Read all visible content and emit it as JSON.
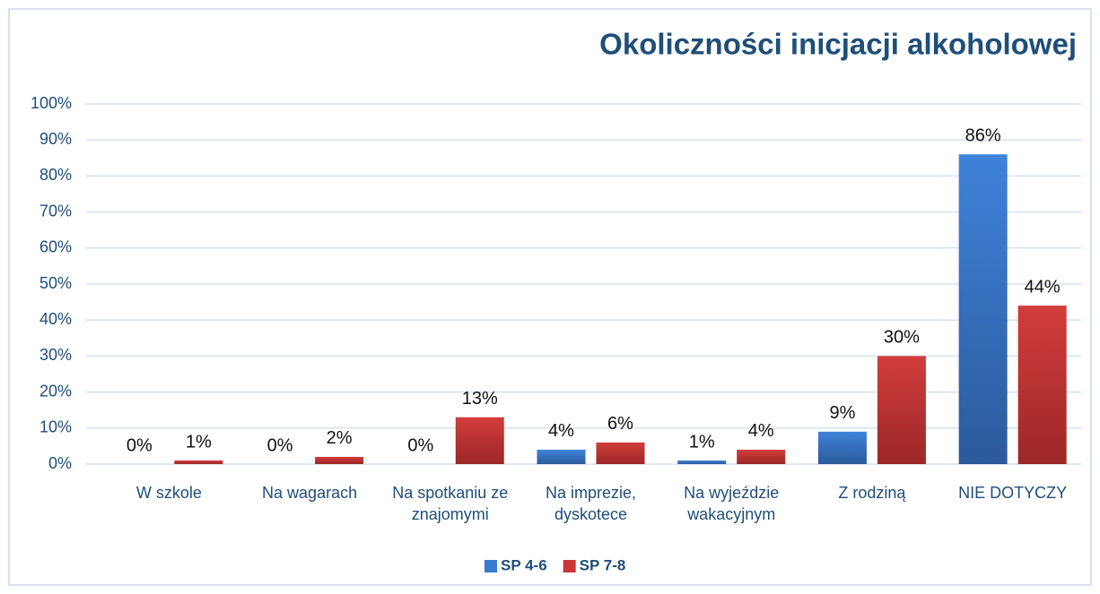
{
  "chart_data": {
    "type": "bar",
    "title": "Okoliczności inicjacji alkoholowej",
    "categories": [
      "W szkole",
      "Na wagarach",
      "Na spotkaniu ze znajomymi",
      "Na imprezie, dyskotece",
      "Na wyjeździe wakacyjnym",
      "Z rodziną",
      "NIE DOTYCZY"
    ],
    "series": [
      {
        "name": "SP 4-6",
        "color": "#3a7bd0",
        "values": [
          0,
          0,
          0,
          4,
          1,
          9,
          86
        ],
        "value_labels": [
          "0%",
          "0%",
          "0%",
          "4%",
          "1%",
          "9%",
          "86%"
        ]
      },
      {
        "name": "SP 7-8",
        "color": "#c93636",
        "values": [
          1,
          2,
          13,
          6,
          4,
          30,
          44
        ],
        "value_labels": [
          "1%",
          "2%",
          "13%",
          "6%",
          "4%",
          "30%",
          "44%"
        ]
      }
    ],
    "ylim": [
      0,
      100
    ],
    "yticks": [
      {
        "value": 0,
        "label": "0%"
      },
      {
        "value": 10,
        "label": "10%"
      },
      {
        "value": 20,
        "label": "20%"
      },
      {
        "value": 30,
        "label": "30%"
      },
      {
        "value": 40,
        "label": "40%"
      },
      {
        "value": 50,
        "label": "50%"
      },
      {
        "value": 60,
        "label": "60%"
      },
      {
        "value": 70,
        "label": "70%"
      },
      {
        "value": 80,
        "label": "80%"
      },
      {
        "value": 90,
        "label": "90%"
      },
      {
        "value": 100,
        "label": "100%"
      }
    ],
    "grid": true,
    "legend": "bottom"
  }
}
